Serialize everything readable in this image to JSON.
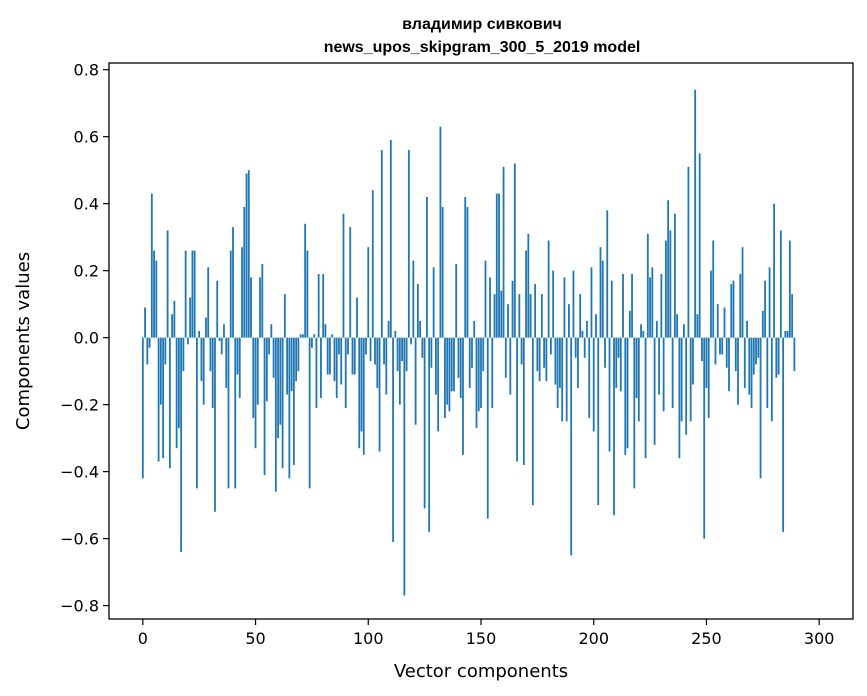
{
  "chart_data": {
    "type": "bar",
    "title_line1": "владимир сивкович",
    "title_line2": "news_upos_skipgram_300_5_2019 model",
    "xlabel": "Vector components",
    "ylabel": "Components values",
    "xlim": [
      -15,
      315
    ],
    "ylim": [
      -0.84,
      0.82
    ],
    "x_ticks": [
      0,
      50,
      100,
      150,
      200,
      250,
      300
    ],
    "x_tick_labels": [
      "0",
      "50",
      "100",
      "150",
      "200",
      "250",
      "300"
    ],
    "y_ticks": [
      -0.8,
      -0.6,
      -0.4,
      -0.2,
      0.0,
      0.2,
      0.4,
      0.6,
      0.8
    ],
    "y_tick_labels": [
      "−0.8",
      "−0.6",
      "−0.4",
      "−0.2",
      "0.0",
      "0.2",
      "0.4",
      "0.6",
      "0.8"
    ],
    "bar_color": "#1f77b4",
    "values": [
      -0.42,
      0.09,
      -0.08,
      -0.03,
      0.43,
      0.26,
      0.23,
      -0.37,
      -0.2,
      -0.36,
      -0.08,
      0.32,
      -0.39,
      0.07,
      0.11,
      -0.33,
      -0.27,
      -0.64,
      -0.1,
      0.26,
      -0.02,
      0.12,
      0.26,
      0.26,
      -0.45,
      0.02,
      -0.13,
      -0.2,
      0.06,
      0.21,
      -0.1,
      -0.21,
      -0.52,
      0.17,
      -0.01,
      -0.05,
      0.04,
      -0.15,
      -0.45,
      0.26,
      0.33,
      -0.45,
      -0.11,
      -0.18,
      0.27,
      0.39,
      0.49,
      0.5,
      0.18,
      -0.24,
      -0.33,
      -0.2,
      0.18,
      0.22,
      -0.41,
      -0.19,
      -0.05,
      0.04,
      -0.12,
      -0.46,
      -0.3,
      -0.26,
      -0.39,
      0.13,
      -0.17,
      -0.42,
      -0.16,
      -0.38,
      -0.13,
      -0.1,
      0.01,
      0.01,
      0.34,
      0.26,
      -0.45,
      -0.03,
      0.01,
      -0.21,
      0.19,
      -0.18,
      0.19,
      0.04,
      -0.11,
      -0.11,
      0.01,
      -0.13,
      -0.18,
      -0.05,
      -0.14,
      0.37,
      -0.21,
      -0.05,
      0.33,
      -0.11,
      -0.11,
      0.12,
      -0.33,
      -0.28,
      -0.35,
      -0.05,
      0.27,
      -0.07,
      0.44,
      -0.08,
      -0.15,
      -0.34,
      0.56,
      -0.08,
      -0.17,
      0.05,
      0.59,
      -0.61,
      0.02,
      -0.1,
      -0.2,
      -0.07,
      -0.77,
      -0.1,
      0.56,
      -0.02,
      0.23,
      -0.26,
      0.16,
      0.05,
      -0.06,
      -0.51,
      0.42,
      -0.58,
      -0.09,
      0.21,
      -0.17,
      -0.28,
      0.63,
      0.39,
      -0.24,
      -0.2,
      -0.22,
      -0.16,
      -0.16,
      0.22,
      -0.12,
      -0.18,
      -0.35,
      0.42,
      0.39,
      -0.15,
      -0.09,
      0.05,
      -0.27,
      -0.22,
      -0.21,
      -0.1,
      0.23,
      -0.54,
      0.18,
      -0.21,
      0.13,
      0.43,
      0.43,
      0.14,
      0.51,
      -0.12,
      0.1,
      -0.17,
      0.17,
      0.52,
      -0.37,
      0.13,
      -0.08,
      -0.38,
      0.26,
      0.31,
      0.13,
      -0.5,
      0.16,
      -0.1,
      -0.13,
      0.13,
      -0.09,
      -0.13,
      0.29,
      -0.05,
      0.2,
      -0.14,
      -0.21,
      -0.15,
      -0.25,
      0.18,
      -0.25,
      0.1,
      -0.65,
      0.2,
      -0.06,
      -0.15,
      0.13,
      0.02,
      -0.06,
      0.05,
      -0.24,
      0.21,
      -0.28,
      0.07,
      -0.5,
      0.27,
      0.23,
      -0.09,
      0.38,
      -0.34,
      0.17,
      -0.53,
      -0.15,
      -0.06,
      -0.16,
      0.19,
      -0.35,
      -0.33,
      0.08,
      0.19,
      -0.45,
      -0.18,
      -0.25,
      0.04,
      0.02,
      -0.36,
      0.31,
      0.18,
      0.21,
      -0.32,
      0.05,
      -0.17,
      0.19,
      -0.22,
      0.29,
      0.41,
      0.32,
      -0.21,
      0.37,
      0.07,
      -0.36,
      -0.25,
      0.04,
      -0.29,
      0.51,
      -0.25,
      -0.14,
      0.74,
      0.07,
      0.55,
      -0.07,
      -0.6,
      -0.15,
      -0.24,
      0.2,
      0.29,
      -0.08,
      0.1,
      -0.05,
      -0.05,
      0.09,
      -0.09,
      -0.16,
      0.16,
      0.17,
      -0.1,
      -0.2,
      0.19,
      0.27,
      -0.15,
      0.05,
      -0.17,
      -0.21,
      -0.11,
      -0.08,
      -0.06,
      -0.42,
      0.08,
      0.17,
      -0.21,
      0.21,
      -0.25,
      0.4,
      -0.12,
      -0.11,
      0.32,
      -0.58,
      0.02,
      0.02,
      0.29,
      0.13,
      -0.1
    ]
  }
}
